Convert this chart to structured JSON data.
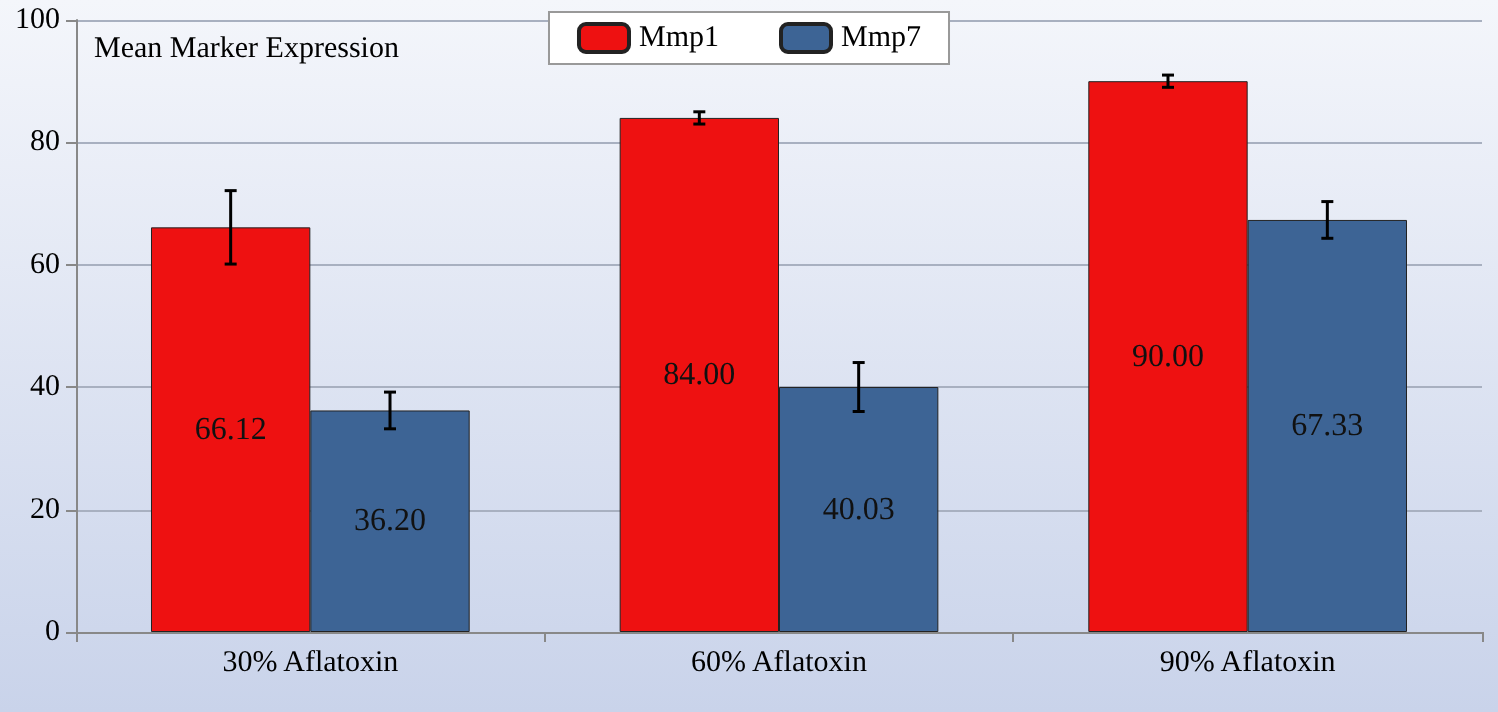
{
  "chart_data": {
    "type": "bar",
    "title": "Mean Marker Expression",
    "categories": [
      "30% Aflatoxin",
      "60% Aflatoxin",
      "90% Aflatoxin"
    ],
    "series": [
      {
        "name": "Mmp1",
        "color": "#ee1111",
        "values": [
          66.12,
          84.0,
          90.0
        ],
        "errors": [
          6,
          1,
          1
        ],
        "value_labels": [
          "66.12",
          "84.00",
          "90.00"
        ]
      },
      {
        "name": "Mmp7",
        "color": "#3d6495",
        "values": [
          36.2,
          40.03,
          67.33
        ],
        "errors": [
          3,
          4,
          3
        ],
        "value_labels": [
          "36.20",
          "40.03",
          "67.33"
        ]
      }
    ],
    "ylim": [
      0,
      100
    ],
    "yticks": [
      0,
      20,
      40,
      60,
      80,
      100
    ],
    "grid": "y",
    "legend": "top"
  }
}
